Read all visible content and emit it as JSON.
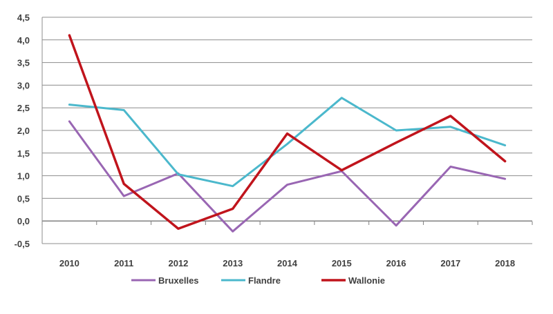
{
  "chart_data": {
    "type": "line",
    "title": "",
    "xlabel": "",
    "ylabel": "",
    "x": [
      "2010",
      "2011",
      "2012",
      "2013",
      "2014",
      "2015",
      "2016",
      "2017",
      "2018"
    ],
    "ylim": [
      -0.5,
      4.5
    ],
    "y_ticks": [
      "-0,5",
      "0,0",
      "0,5",
      "1,0",
      "1,5",
      "2,0",
      "2,5",
      "3,0",
      "3,5",
      "4,0",
      "4,5"
    ],
    "grid": true,
    "legend_position": "bottom",
    "series": [
      {
        "name": "Bruxelles",
        "color": "#9966b3",
        "values": [
          2.2,
          0.55,
          1.05,
          -0.23,
          0.8,
          1.1,
          -0.1,
          1.2,
          0.93
        ]
      },
      {
        "name": "Flandre",
        "color": "#4bb8cc",
        "values": [
          2.57,
          2.45,
          1.03,
          0.77,
          1.7,
          2.72,
          2.0,
          2.08,
          1.67
        ]
      },
      {
        "name": "Wallonie",
        "color": "#c0141c",
        "values": [
          4.1,
          0.82,
          -0.17,
          0.27,
          1.93,
          1.12,
          1.73,
          2.32,
          1.32
        ]
      }
    ]
  }
}
